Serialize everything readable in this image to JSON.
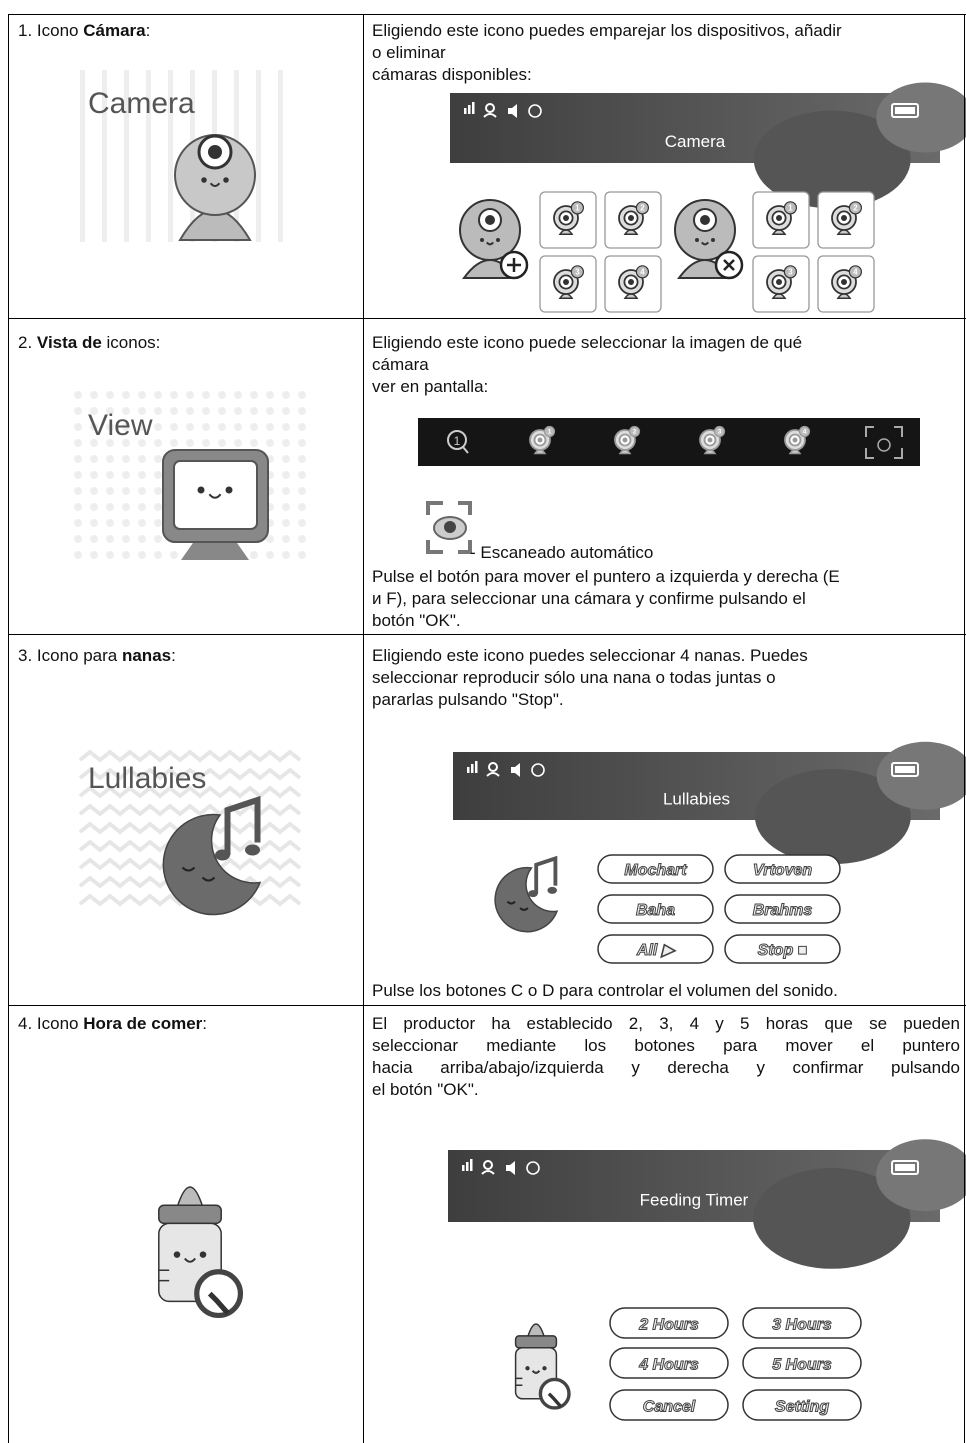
{
  "rows": [
    {
      "label": {
        "prefix": "1. Icono ",
        "bold": "Cámara",
        "suffix": ":"
      },
      "icon_caption": "Camera",
      "text": [
        "Eligiendo este icono puedes emparejar los dispositivos, añadir",
        "o eliminar",
        "cámaras disponibles:"
      ],
      "screen_title": "Camera",
      "camera_numbers": [
        "1",
        "2",
        "3",
        "4"
      ]
    },
    {
      "label": {
        "prefix": "2. ",
        "bold": "Vista de",
        "suffix": " iconos:"
      },
      "icon_caption": "View",
      "text": [
        "Eligiendo este icono puede seleccionar la imagen de qué",
        "cámara",
        "ver en pantalla:"
      ],
      "bar_search_number": "1",
      "camera_numbers": [
        "1",
        "2",
        "3",
        "4"
      ],
      "scan_caption": "- Escaneado automático",
      "note": [
        "Pulse el botón para mover el puntero a izquierda y derecha (E",
        "и F), para seleccionar una cámara y confirme pulsando el",
        "botón \"OK\"."
      ]
    },
    {
      "label": {
        "prefix": "3. Icono para ",
        "bold": "nanas",
        "suffix": ":"
      },
      "icon_caption": "Lullabies",
      "text": [
        "Eligiendo este icono puedes seleccionar 4 nanas. Puedes",
        "seleccionar reproducir sólo una nana o todas juntas o",
        "pararlas pulsando \"Stop\"."
      ],
      "screen_title": "Lullabies",
      "buttons": [
        "Mochart",
        "Vrtoven",
        "Baha",
        "Brahms",
        "All ▶",
        "Stop ■"
      ],
      "note": "Pulse los botones C o D para controlar el volumen del sonido."
    },
    {
      "label": {
        "prefix": "4. Icono ",
        "bold": "Hora de comer",
        "suffix": ":"
      },
      "text": [
        "El productor ha establecido 2, 3, 4 y 5 horas que se pueden",
        "seleccionar mediante los botones para mover el puntero",
        "hacia arriba/abajo/izquierda y derecha y confirmar pulsando",
        "el botón \"OK\"."
      ],
      "screen_title": "Feeding Timer",
      "buttons": [
        "2 Hours",
        "3 Hours",
        "4 Hours",
        "5 Hours",
        "Cancel",
        "Setting"
      ]
    }
  ]
}
